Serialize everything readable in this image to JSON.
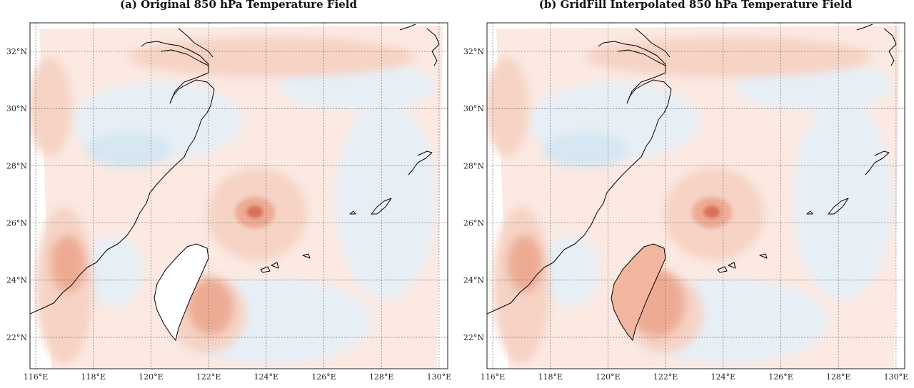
{
  "panels": [
    {
      "id": "a",
      "title": "(a) Original 850 hPa Temperature Field",
      "taiwan_fill": "#ffffff",
      "warm_fill": "#e08a72"
    },
    {
      "id": "b",
      "title": "(b) GridFill Interpolated 850 hPa Temperature Field",
      "taiwan_fill": "#f2b6a0",
      "warm_fill": "#e08a72"
    }
  ],
  "axes": {
    "lon_ticks": [
      116,
      118,
      120,
      122,
      124,
      126,
      128,
      130
    ],
    "lat_ticks": [
      22,
      24,
      26,
      28,
      30,
      32
    ],
    "lon_range": [
      115.8,
      130.3
    ],
    "lat_range": [
      20.9,
      33.0
    ],
    "lon_labels": [
      "116°E",
      "118°E",
      "120°E",
      "122°E",
      "124°E",
      "126°E",
      "128°E",
      "130°E"
    ],
    "lat_labels": [
      "22°N",
      "24°N",
      "26°N",
      "28°N",
      "30°N",
      "32°N"
    ]
  },
  "colors": {
    "background_field": "#fbe9e2",
    "cool": "#e7eff6",
    "cool_strong": "#d6e6f2",
    "warm_light": "#f6d3c5",
    "warm_mid": "#eeab94",
    "warm_strong": "#d9705a",
    "coastline": "#000000",
    "grid": "#6e6e6e"
  }
}
